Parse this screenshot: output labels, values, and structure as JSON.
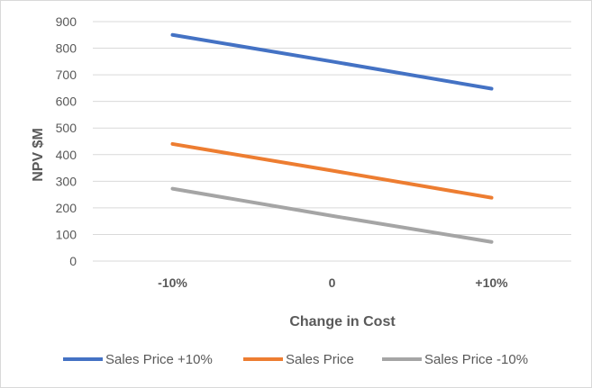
{
  "chart_data": {
    "type": "line",
    "title": "",
    "xlabel": "Change in Cost",
    "ylabel": "NPV $M",
    "categories": [
      "-10%",
      "0",
      "+10%"
    ],
    "ylim": [
      0,
      900
    ],
    "yticks": [
      0,
      100,
      200,
      300,
      400,
      500,
      600,
      700,
      800,
      900
    ],
    "grid": true,
    "legend_position": "bottom",
    "series": [
      {
        "name": "Sales Price +10%",
        "color": "#4472c4",
        "values": [
          850,
          750,
          648
        ]
      },
      {
        "name": "Sales Price",
        "color": "#ed7d31",
        "values": [
          440,
          340,
          238
        ]
      },
      {
        "name": "Sales Price -10%",
        "color": "#a5a5a5",
        "values": [
          272,
          170,
          72
        ]
      }
    ]
  }
}
